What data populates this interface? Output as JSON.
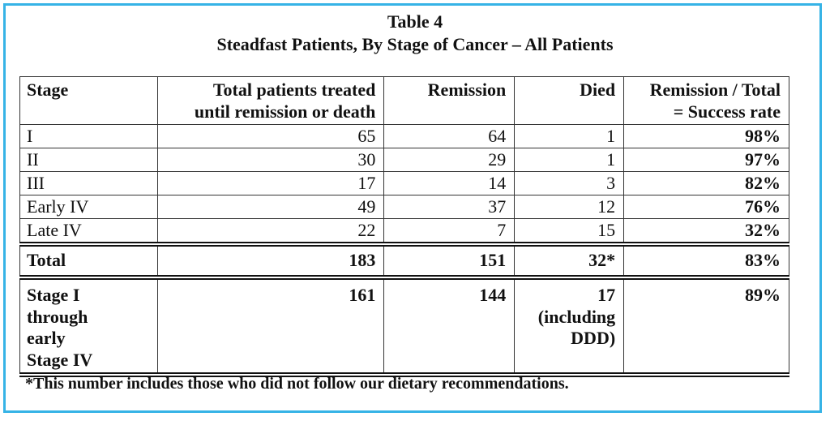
{
  "title": {
    "line1": "Table 4",
    "line2": "Steadfast Patients, By Stage of Cancer – All Patients"
  },
  "table": {
    "headers": {
      "stage": "Stage",
      "total_line1": "Total patients treated",
      "total_line2": "until remission or death",
      "remission": "Remission",
      "died": "Died",
      "rate_line1": "Remission / Total",
      "rate_line2": "= Success rate"
    },
    "rows": [
      {
        "stage": "I",
        "total": "65",
        "remission": "64",
        "died": "1",
        "rate": "98%"
      },
      {
        "stage": "II",
        "total": "30",
        "remission": "29",
        "died": "1",
        "rate": "97%"
      },
      {
        "stage": "III",
        "total": "17",
        "remission": "14",
        "died": "3",
        "rate": "82%"
      },
      {
        "stage": "Early IV",
        "total": "49",
        "remission": "37",
        "died": "12",
        "rate": "76%"
      },
      {
        "stage": "Late IV",
        "total": "22",
        "remission": "7",
        "died": "15",
        "rate": "32%"
      }
    ],
    "total_row": {
      "stage": "Total",
      "total": "183",
      "remission": "151",
      "died": "32*",
      "rate": "83%"
    },
    "subset_row": {
      "stage_lines": [
        "Stage I",
        "through",
        "early",
        "Stage IV"
      ],
      "total": "161",
      "remission": "144",
      "died_lines": [
        "17",
        "(including",
        "DDD)"
      ],
      "rate": "89%"
    }
  },
  "footnote": "*This number includes those who did not follow our dietary recommendations."
}
